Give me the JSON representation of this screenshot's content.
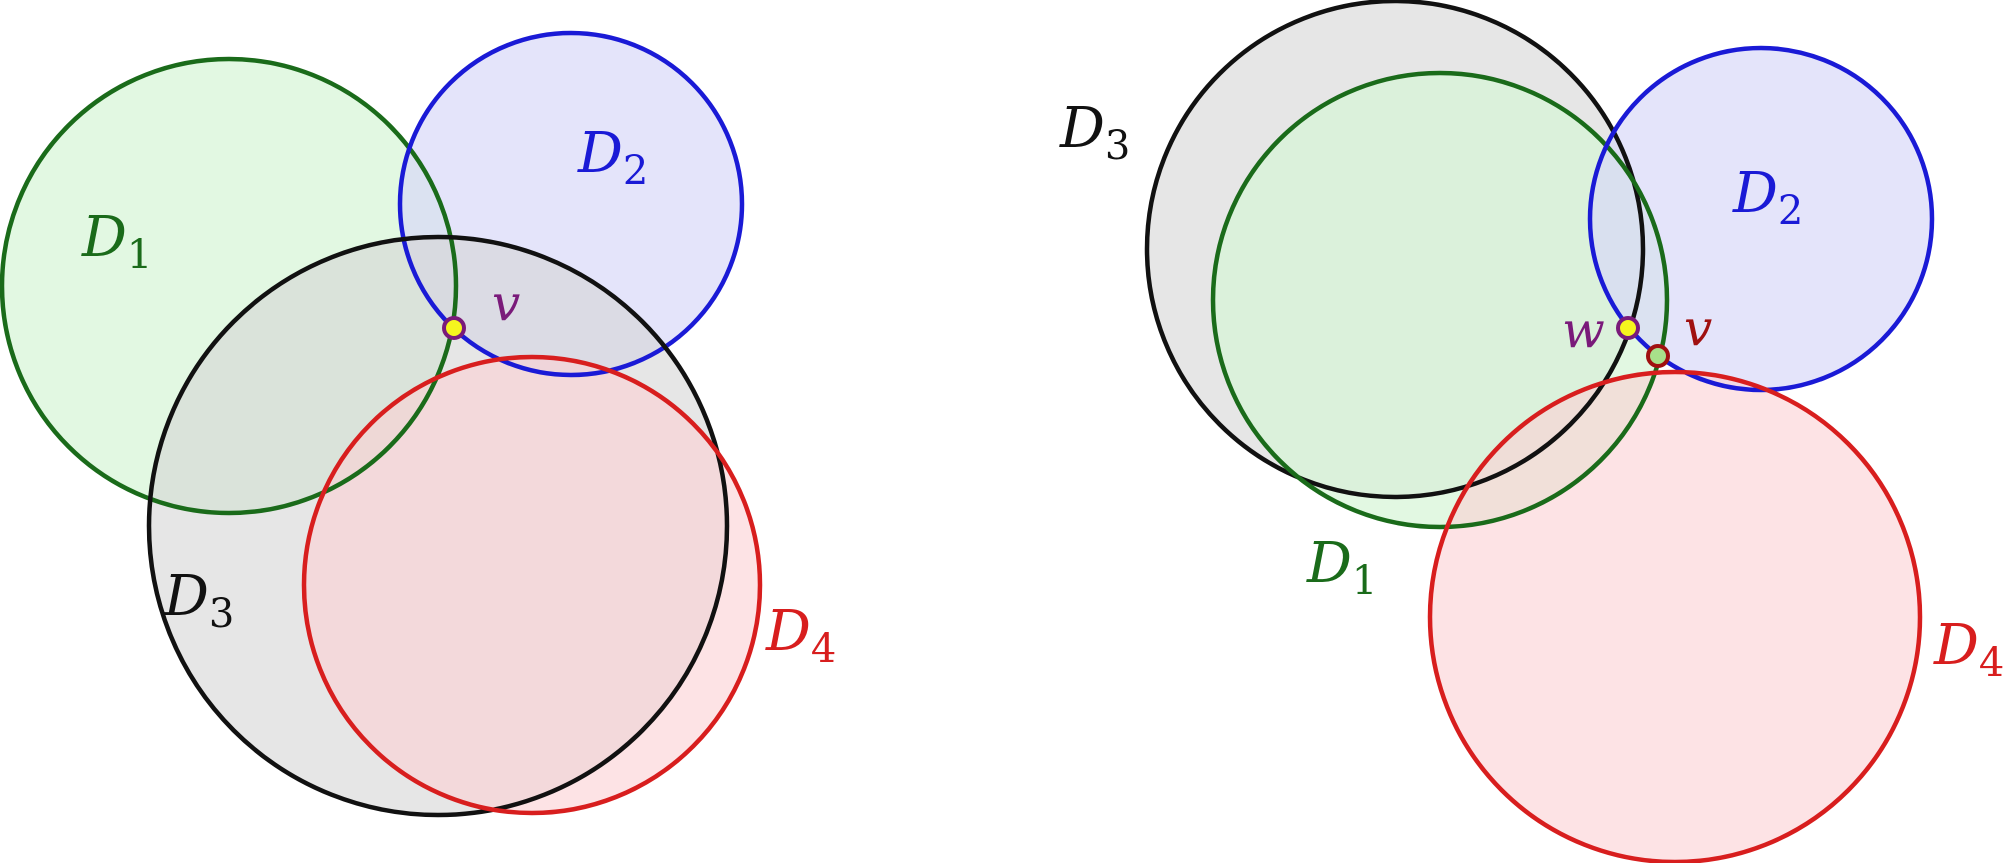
{
  "colors": {
    "green": "#1a6b1a",
    "blue": "#1a1ad6",
    "black": "#111111",
    "red": "#d81e1e",
    "purple": "#7a1a7a",
    "darkred": "#a01010",
    "green_fill": "#d5f5d5",
    "blue_fill": "#d8d8f8",
    "gray_fill": "#d6d6d6",
    "red_fill": "#fbd0d4",
    "yellow": "#f5f51e",
    "lightgreen": "#a8e08a"
  },
  "left": {
    "disks": [
      {
        "name": "D",
        "sub": "1",
        "color": "green"
      },
      {
        "name": "D",
        "sub": "2",
        "color": "blue"
      },
      {
        "name": "D",
        "sub": "3",
        "color": "black"
      },
      {
        "name": "D",
        "sub": "4",
        "color": "red"
      }
    ],
    "points": [
      {
        "label": "v",
        "color": "purple"
      }
    ]
  },
  "right": {
    "disks": [
      {
        "name": "D",
        "sub": "3",
        "color": "black"
      },
      {
        "name": "D",
        "sub": "1",
        "color": "green"
      },
      {
        "name": "D",
        "sub": "2",
        "color": "blue"
      },
      {
        "name": "D",
        "sub": "4",
        "color": "red"
      }
    ],
    "points": [
      {
        "label": "w",
        "color": "purple"
      },
      {
        "label": "v",
        "color": "darkred"
      }
    ]
  }
}
